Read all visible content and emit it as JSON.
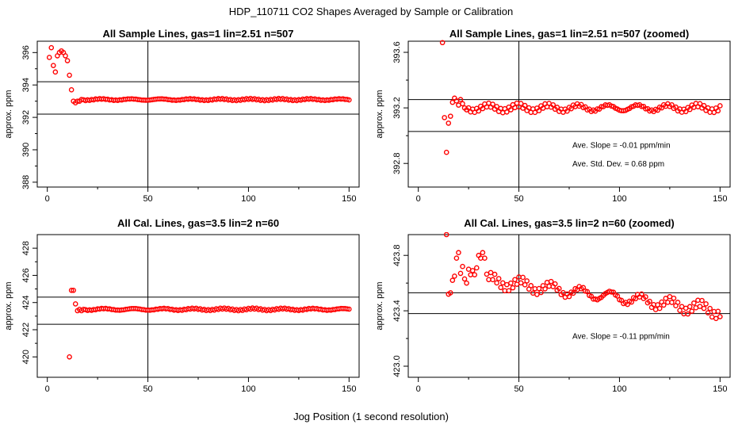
{
  "figure": {
    "title": "HDP_110711  CO2 Shapes Averaged by Sample or Calibration",
    "xlabel": "Jog Position (1 second resolution)"
  },
  "colors": {
    "points": "#ff0000",
    "lines": "#000000",
    "background": "#ffffff"
  },
  "chart_data": [
    {
      "type": "scatter",
      "title": "All Sample Lines, gas=1 lin=2.51 n=507",
      "xlabel": "",
      "ylabel": "approx. ppm",
      "xlim": [
        -5,
        155
      ],
      "ylim": [
        387.7,
        396.7
      ],
      "xticks": [
        0,
        50,
        100,
        150
      ],
      "yticks": [
        388,
        390,
        392,
        394,
        396
      ],
      "vline": 50,
      "hlines": [
        392.2,
        394.2
      ],
      "annotations": [],
      "series": [
        {
          "early": [
            [
              1,
              395.7
            ],
            [
              2,
              396.3
            ],
            [
              3,
              395.2
            ],
            [
              4,
              394.8
            ],
            [
              5,
              395.8
            ],
            [
              6,
              396.0
            ],
            [
              7,
              396.1
            ],
            [
              8,
              396.0
            ],
            [
              9,
              395.8
            ],
            [
              10,
              395.5
            ],
            [
              11,
              394.6
            ],
            [
              12,
              393.7
            ],
            [
              13,
              393.0
            ],
            [
              14,
              392.9
            ],
            [
              15,
              393.0
            ],
            [
              16,
              393.0
            ],
            [
              17,
              393.1
            ]
          ],
          "x_rest": [
            18,
            150
          ],
          "base": 393.1,
          "jitter": 0.07
        }
      ]
    },
    {
      "type": "scatter",
      "title": "All Sample Lines, gas=1 lin=2.51 n=507 (zoomed)",
      "xlabel": "",
      "ylabel": "approx. ppm",
      "xlim": [
        -5,
        155
      ],
      "ylim": [
        392.63,
        393.68
      ],
      "xticks": [
        0,
        50,
        100,
        150
      ],
      "yticks": [
        392.8,
        393.2,
        393.6
      ],
      "vline": 50,
      "hlines": [
        393.03,
        393.26
      ],
      "annotations": [
        "Ave. Slope =  -0.01  ppm/min",
        "Ave. Std. Dev. =  0.68  ppm"
      ],
      "series": [
        {
          "early": [
            [
              12,
              393.67
            ],
            [
              13,
              393.13
            ],
            [
              14,
              392.88
            ],
            [
              15,
              393.09
            ],
            [
              16,
              393.14
            ],
            [
              17,
              393.24
            ],
            [
              18,
              393.27
            ],
            [
              19,
              393.25
            ],
            [
              20,
              393.22
            ],
            [
              21,
              393.26
            ],
            [
              22,
              393.23
            ],
            [
              23,
              393.2
            ]
          ],
          "x_rest": [
            24,
            150
          ],
          "base": 393.2,
          "jitter": 0.035
        }
      ]
    },
    {
      "type": "scatter",
      "title": "All Cal. Lines, gas=3.5 lin=2 n=60",
      "xlabel": "",
      "ylabel": "approx. ppm",
      "xlim": [
        -5,
        155
      ],
      "ylim": [
        418.5,
        429.0
      ],
      "xticks": [
        0,
        50,
        100,
        150
      ],
      "yticks": [
        420,
        422,
        424,
        426,
        428
      ],
      "vline": 50,
      "hlines": [
        422.4,
        424.4
      ],
      "annotations": [],
      "series": [
        {
          "early": [
            [
              11,
              420.0
            ],
            [
              12,
              424.9
            ],
            [
              13,
              424.9
            ],
            [
              14,
              423.9
            ],
            [
              15,
              423.4
            ],
            [
              16,
              423.5
            ],
            [
              17,
              423.4
            ],
            [
              18,
              423.5
            ]
          ],
          "x_rest": [
            19,
            150
          ],
          "base": 423.5,
          "jitter": 0.1
        }
      ]
    },
    {
      "type": "scatter",
      "title": "All Cal. Lines, gas=3.5 lin=2 n=60 (zoomed)",
      "xlabel": "",
      "ylabel": "approx. ppm",
      "xlim": [
        -5,
        155
      ],
      "ylim": [
        422.92,
        423.95
      ],
      "xticks": [
        0,
        50,
        100,
        150
      ],
      "yticks": [
        423.0,
        423.4,
        423.8
      ],
      "vline": 50,
      "hlines": [
        423.38,
        423.53
      ],
      "annotations": [
        "Ave. Slope =  -0.11  ppm/min"
      ],
      "series": [
        {
          "early": [
            [
              14,
              423.95
            ],
            [
              15,
              423.52
            ],
            [
              16,
              423.53
            ],
            [
              17,
              423.62
            ],
            [
              18,
              423.65
            ],
            [
              19,
              423.78
            ],
            [
              20,
              423.82
            ],
            [
              21,
              423.67
            ],
            [
              22,
              423.72
            ],
            [
              23,
              423.63
            ],
            [
              24,
              423.6
            ],
            [
              25,
              423.7
            ],
            [
              26,
              423.66
            ],
            [
              27,
              423.69
            ],
            [
              28,
              423.66
            ],
            [
              29,
              423.71
            ],
            [
              30,
              423.8
            ],
            [
              31,
              423.78
            ],
            [
              32,
              423.82
            ],
            [
              33,
              423.78
            ]
          ],
          "x_rest": [
            34,
            150
          ],
          "base_start": 423.62,
          "base_end": 423.4,
          "jitter": 0.06
        }
      ]
    }
  ]
}
